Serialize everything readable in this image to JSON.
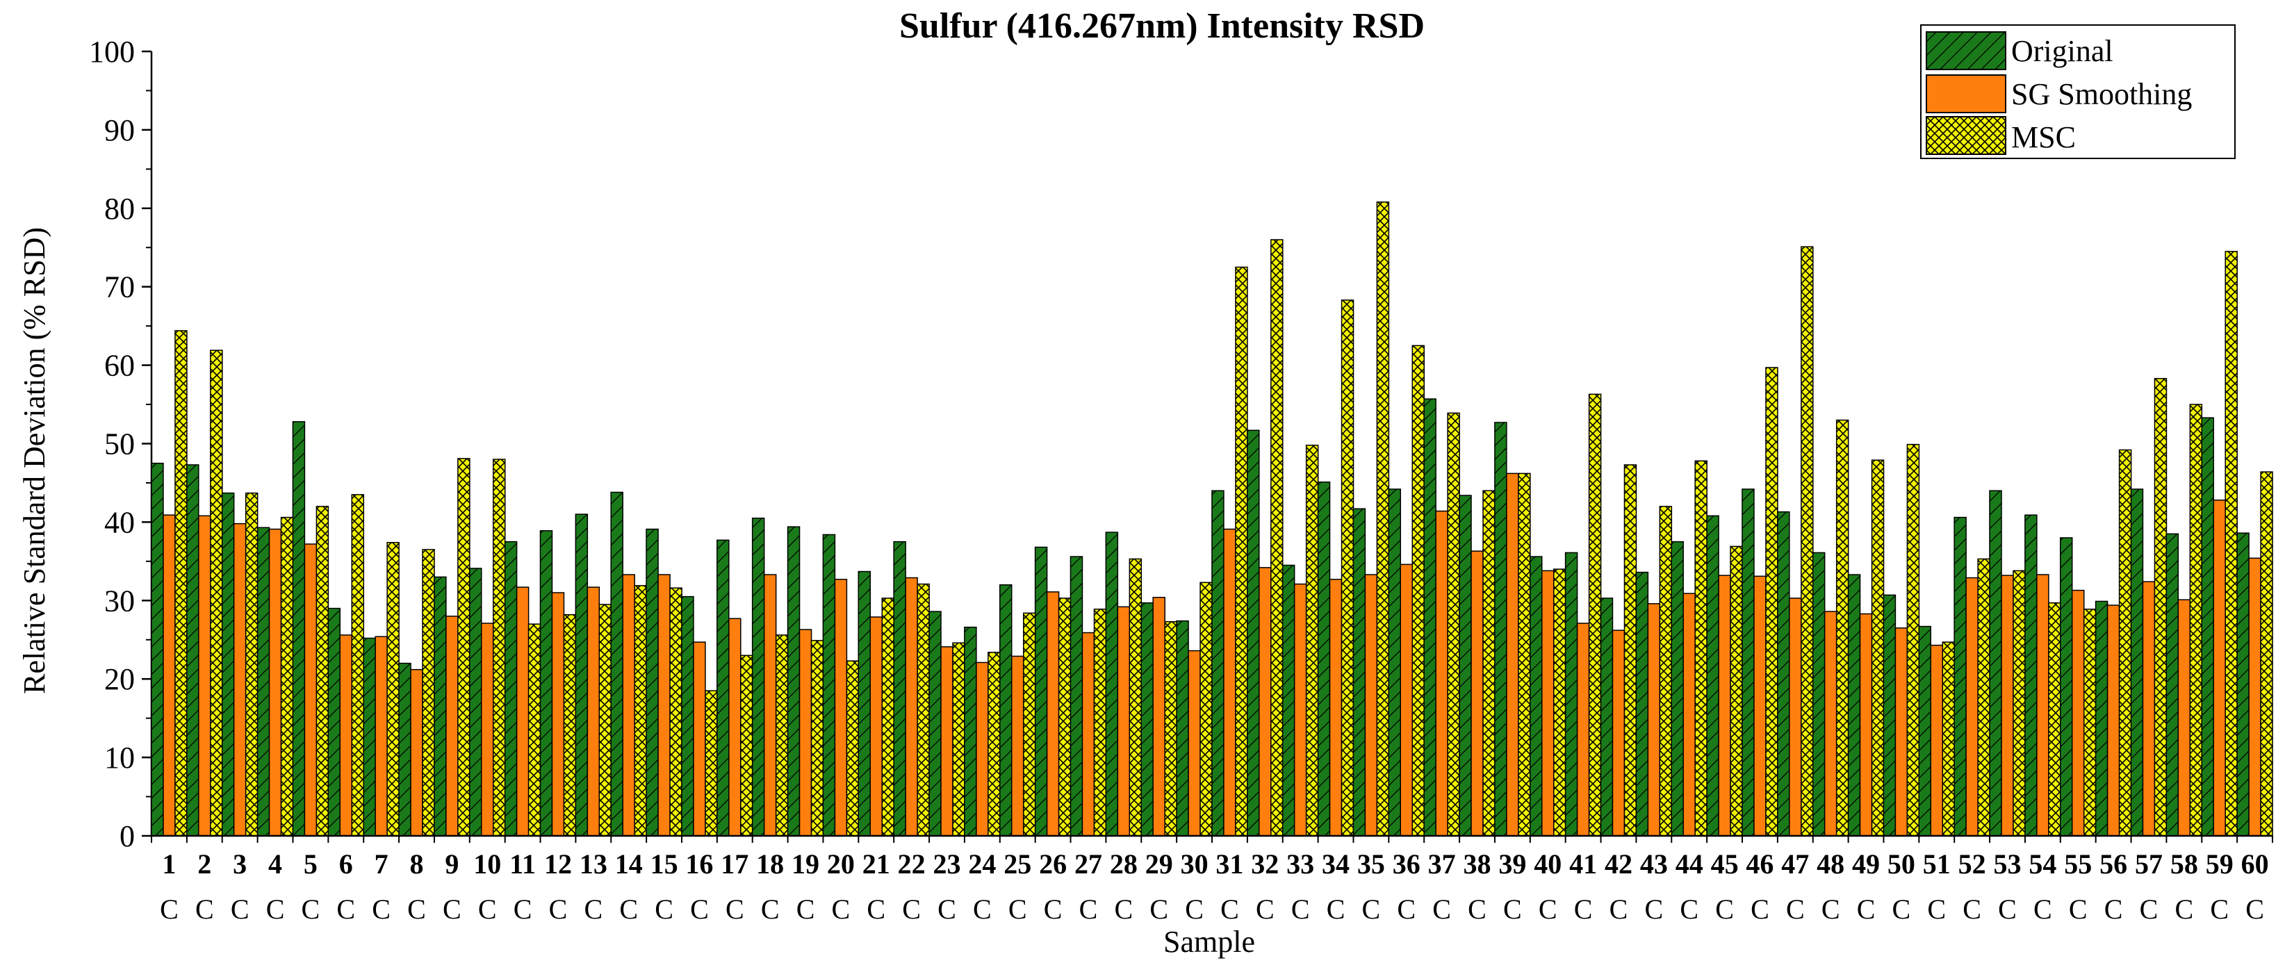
{
  "chart_data": {
    "type": "bar",
    "title": "Sulfur (416.267nm) Intensity RSD",
    "xlabel": "Sample",
    "ylabel": "Relative Standard Deviation (% RSD)",
    "ylim": [
      0,
      100
    ],
    "yticks": [
      0,
      10,
      20,
      30,
      40,
      50,
      60,
      70,
      80,
      90,
      100
    ],
    "legend_position": "top-right",
    "categories": [
      "1",
      "2",
      "3",
      "4",
      "5",
      "6",
      "7",
      "8",
      "9",
      "10",
      "11",
      "12",
      "13",
      "14",
      "15",
      "16",
      "17",
      "18",
      "19",
      "20",
      "21",
      "22",
      "23",
      "24",
      "25",
      "26",
      "27",
      "28",
      "29",
      "30",
      "31",
      "32",
      "33",
      "34",
      "35",
      "36",
      "37",
      "38",
      "39",
      "40",
      "41",
      "42",
      "43",
      "44",
      "45",
      "46",
      "47",
      "48",
      "49",
      "50",
      "51",
      "52",
      "53",
      "54",
      "55",
      "56",
      "57",
      "58",
      "59",
      "60"
    ],
    "category_sublabel": "C",
    "series": [
      {
        "name": "Original",
        "color": "#1a7a1a",
        "pattern": "diagonal-hatch",
        "values": [
          47.5,
          47.3,
          43.7,
          39.3,
          52.8,
          29.0,
          25.2,
          22.0,
          33.0,
          34.1,
          37.5,
          38.9,
          41.0,
          43.8,
          39.1,
          30.5,
          37.7,
          40.5,
          39.4,
          38.4,
          33.7,
          37.5,
          28.6,
          26.6,
          32.0,
          36.8,
          35.6,
          38.7,
          29.7,
          27.4,
          44.0,
          51.7,
          34.5,
          45.1,
          41.7,
          44.2,
          55.7,
          43.4,
          52.7,
          35.6,
          36.1,
          30.3,
          33.6,
          37.5,
          40.8,
          44.2,
          41.3,
          36.1,
          33.3,
          30.7,
          26.7,
          40.6,
          44.0,
          40.9,
          38.0,
          29.9,
          44.2,
          38.5,
          53.3,
          38.6
        ]
      },
      {
        "name": "SG Smoothing",
        "color": "#ff7f0e",
        "pattern": "solid",
        "values": [
          40.9,
          40.8,
          39.8,
          39.1,
          37.2,
          25.6,
          25.4,
          21.2,
          28.0,
          27.1,
          31.7,
          31.0,
          31.7,
          33.3,
          33.3,
          24.7,
          27.7,
          33.3,
          26.3,
          32.7,
          27.9,
          32.9,
          24.1,
          22.1,
          22.9,
          31.1,
          25.9,
          29.2,
          30.4,
          23.6,
          39.1,
          34.2,
          32.1,
          32.7,
          33.3,
          34.6,
          41.4,
          36.3,
          46.2,
          33.8,
          27.1,
          26.2,
          29.6,
          30.9,
          33.2,
          33.1,
          30.3,
          28.6,
          28.3,
          26.5,
          24.3,
          32.9,
          33.2,
          33.3,
          31.3,
          29.4,
          32.4,
          30.1,
          42.8,
          35.4
        ]
      },
      {
        "name": "MSC",
        "color": "#f2f200",
        "pattern": "crosshatch",
        "values": [
          64.4,
          61.9,
          43.7,
          40.6,
          42.0,
          43.5,
          37.4,
          36.5,
          48.1,
          48.0,
          27.0,
          28.2,
          29.5,
          31.9,
          31.6,
          18.5,
          23.0,
          25.6,
          24.9,
          22.3,
          30.3,
          32.1,
          24.6,
          23.4,
          28.4,
          30.3,
          28.9,
          35.3,
          27.3,
          32.3,
          72.5,
          76.0,
          49.8,
          68.3,
          80.8,
          62.5,
          53.9,
          44.0,
          46.2,
          34.0,
          56.3,
          47.3,
          42.0,
          47.8,
          36.9,
          59.7,
          75.1,
          53.0,
          47.9,
          49.9,
          24.7,
          35.3,
          33.8,
          29.7,
          28.9,
          49.2,
          58.3,
          55.0,
          74.5,
          46.4
        ]
      }
    ]
  }
}
